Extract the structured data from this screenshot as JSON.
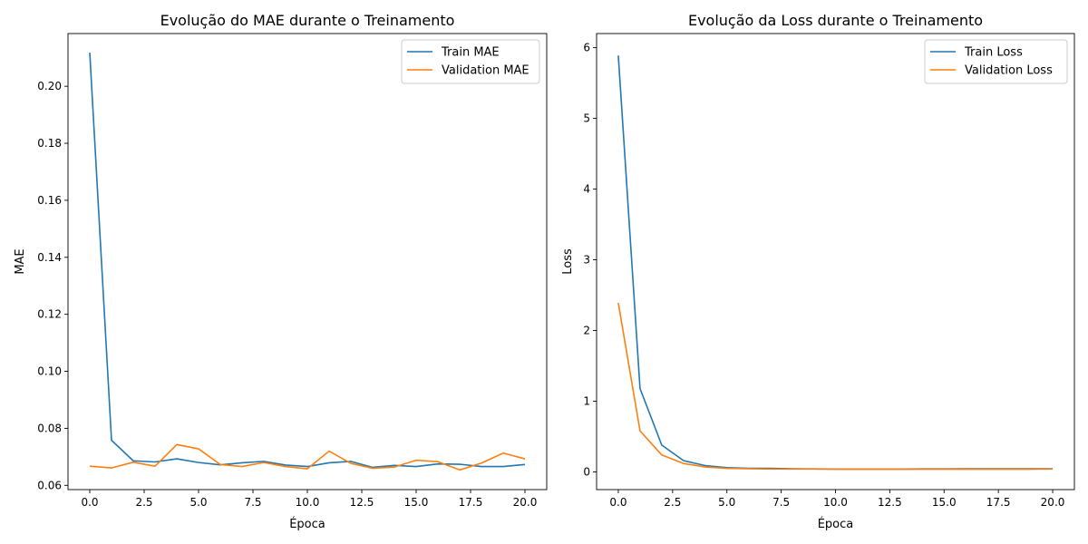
{
  "chart_data": [
    {
      "type": "line",
      "title": "Evolução do MAE durante o Treinamento",
      "xlabel": "Época",
      "ylabel": "MAE",
      "xlim": [
        -1,
        21
      ],
      "ylim": [
        0.0585,
        0.2185
      ],
      "xticks": [
        0,
        2.5,
        5,
        7.5,
        10,
        12.5,
        15,
        17.5,
        20
      ],
      "xtick_labels": [
        "0.0",
        "2.5",
        "5.0",
        "7.5",
        "10.0",
        "12.5",
        "15.0",
        "17.5",
        "20.0"
      ],
      "yticks": [
        0.06,
        0.08,
        0.1,
        0.12,
        0.14,
        0.16,
        0.18,
        0.2
      ],
      "ytick_labels": [
        "0.06",
        "0.08",
        "0.10",
        "0.12",
        "0.14",
        "0.16",
        "0.18",
        "0.20"
      ],
      "legend_position": "top-right",
      "grid": false,
      "x": [
        0,
        1,
        2,
        3,
        4,
        5,
        6,
        7,
        8,
        9,
        10,
        11,
        12,
        13,
        14,
        15,
        16,
        17,
        18,
        19,
        20
      ],
      "series": [
        {
          "name": "Train MAE",
          "color": "#1f77b4",
          "values": [
            0.2118,
            0.0758,
            0.0686,
            0.0682,
            0.0693,
            0.068,
            0.0672,
            0.0679,
            0.0684,
            0.0671,
            0.0666,
            0.0679,
            0.0684,
            0.0663,
            0.067,
            0.0666,
            0.0675,
            0.0674,
            0.0666,
            0.0666,
            0.0673
          ]
        },
        {
          "name": "Validation MAE",
          "color": "#ff7f0e",
          "values": [
            0.0667,
            0.0661,
            0.0681,
            0.0667,
            0.0743,
            0.0728,
            0.0673,
            0.0666,
            0.068,
            0.0666,
            0.0658,
            0.072,
            0.0677,
            0.066,
            0.0664,
            0.0688,
            0.0683,
            0.0654,
            0.0678,
            0.0713,
            0.0693
          ]
        }
      ]
    },
    {
      "type": "line",
      "title": "Evolução da Loss durante o Treinamento",
      "xlabel": "Época",
      "ylabel": "Loss",
      "xlim": [
        -1,
        21
      ],
      "ylim": [
        -0.25,
        6.2
      ],
      "xticks": [
        0,
        2.5,
        5,
        7.5,
        10,
        12.5,
        15,
        17.5,
        20
      ],
      "xtick_labels": [
        "0.0",
        "2.5",
        "5.0",
        "7.5",
        "10.0",
        "12.5",
        "15.0",
        "17.5",
        "20.0"
      ],
      "yticks": [
        0,
        1,
        2,
        3,
        4,
        5,
        6
      ],
      "ytick_labels": [
        "0",
        "1",
        "2",
        "3",
        "4",
        "5",
        "6"
      ],
      "legend_position": "top-right",
      "grid": false,
      "x": [
        0,
        1,
        2,
        3,
        4,
        5,
        6,
        7,
        8,
        9,
        10,
        11,
        12,
        13,
        14,
        15,
        16,
        17,
        18,
        19,
        20
      ],
      "series": [
        {
          "name": "Train Loss",
          "color": "#1f77b4",
          "values": [
            5.89,
            1.18,
            0.38,
            0.16,
            0.09,
            0.06,
            0.05,
            0.05,
            0.045,
            0.042,
            0.04,
            0.04,
            0.04,
            0.04,
            0.042,
            0.043,
            0.044,
            0.044,
            0.045,
            0.045,
            0.045
          ]
        },
        {
          "name": "Validation Loss",
          "color": "#ff7f0e",
          "values": [
            2.39,
            0.58,
            0.24,
            0.12,
            0.07,
            0.05,
            0.045,
            0.04,
            0.04,
            0.04,
            0.038,
            0.038,
            0.038,
            0.038,
            0.038,
            0.038,
            0.038,
            0.038,
            0.038,
            0.038,
            0.04
          ]
        }
      ]
    }
  ]
}
